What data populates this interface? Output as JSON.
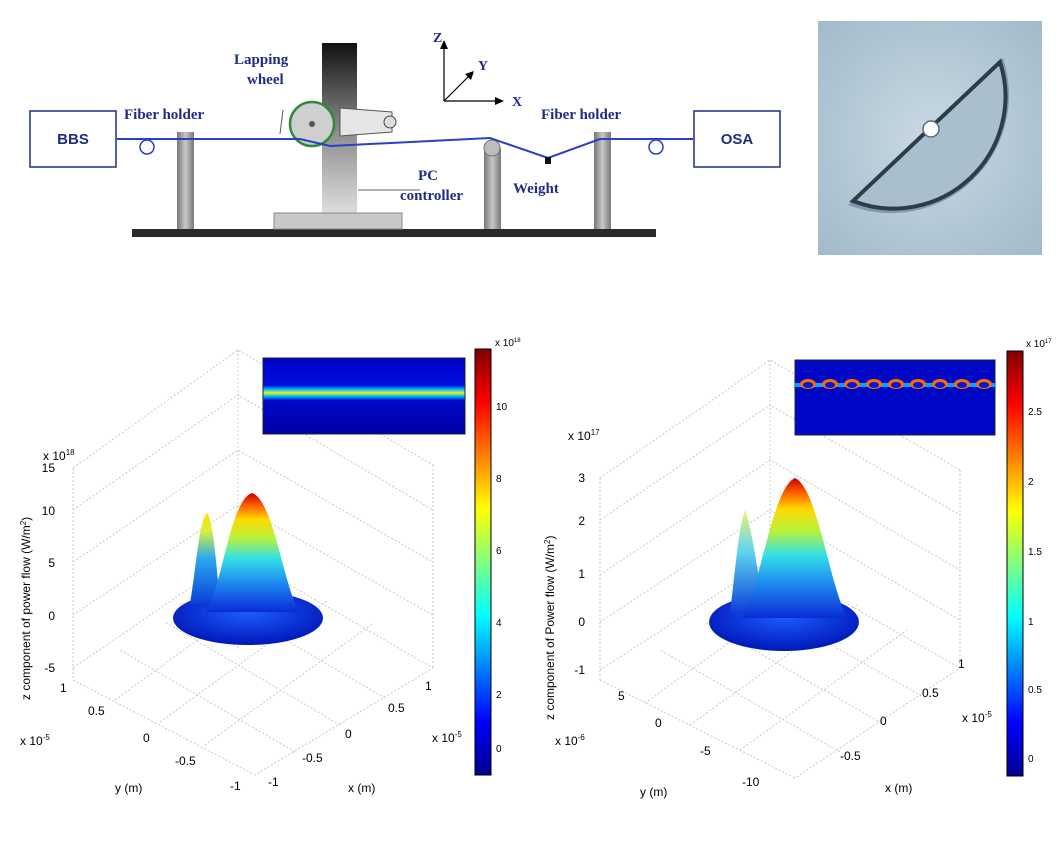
{
  "setup": {
    "bbs": "BBS",
    "osa": "OSA",
    "fiber_holder_left": "Fiber holder",
    "fiber_holder_right": "Fiber holder",
    "lapping_wheel_1": "Lapping",
    "lapping_wheel_2": "wheel",
    "pc_1": "PC",
    "pc_2": "controller",
    "weight": "Weight",
    "axes": {
      "z": "Z",
      "y": "Y",
      "x": "X"
    }
  },
  "plot_left": {
    "zlabel": "z component of power flow (W/m",
    "zlabel_sup": "2",
    "zlabel_end": ")",
    "zscale": "x 10",
    "zscale_exp": "18",
    "zticks": [
      "15",
      "10",
      "5",
      "0",
      "-5"
    ],
    "yscale": "x 10",
    "yscale_exp": "-5",
    "yticks": [
      "1",
      "0.5",
      "0",
      "-0.5",
      "-1"
    ],
    "ylabel": "y (m)",
    "xscale": "x 10",
    "xscale_exp": "-5",
    "xticks": [
      "1",
      "0.5",
      "0",
      "-0.5",
      "-1"
    ],
    "xlabel": "x (m)",
    "cb_scale": "x 10",
    "cb_scale_exp": "18",
    "cb_ticks": [
      "10",
      "8",
      "6",
      "4",
      "2",
      "0"
    ]
  },
  "plot_right": {
    "zlabel": "z component of Power flow (W/m",
    "zlabel_sup": "2",
    "zlabel_end": ")",
    "zscale": "x 10",
    "zscale_exp": "17",
    "zticks": [
      "3",
      "2",
      "1",
      "0",
      "-1"
    ],
    "yscale": "x 10",
    "yscale_exp": "-6",
    "yticks": [
      "5",
      "0",
      "-5",
      "-10"
    ],
    "ylabel": "y (m)",
    "xscale": "x 10",
    "xscale_exp": "-5",
    "xticks": [
      "1",
      "0.5",
      "0",
      "-0.5"
    ],
    "xlabel": "x (m)",
    "cb_scale": "x 10",
    "cb_scale_exp": "17",
    "cb_ticks": [
      "2.5",
      "2",
      "1.5",
      "1",
      "0.5",
      "0"
    ]
  },
  "colors": {
    "setup_blue": "#1f2d86",
    "fiber_blue": "#2a3fc9",
    "wheel_green": "#2e8b3a",
    "jet_low": "#00008f",
    "jet_high": "#800000"
  }
}
